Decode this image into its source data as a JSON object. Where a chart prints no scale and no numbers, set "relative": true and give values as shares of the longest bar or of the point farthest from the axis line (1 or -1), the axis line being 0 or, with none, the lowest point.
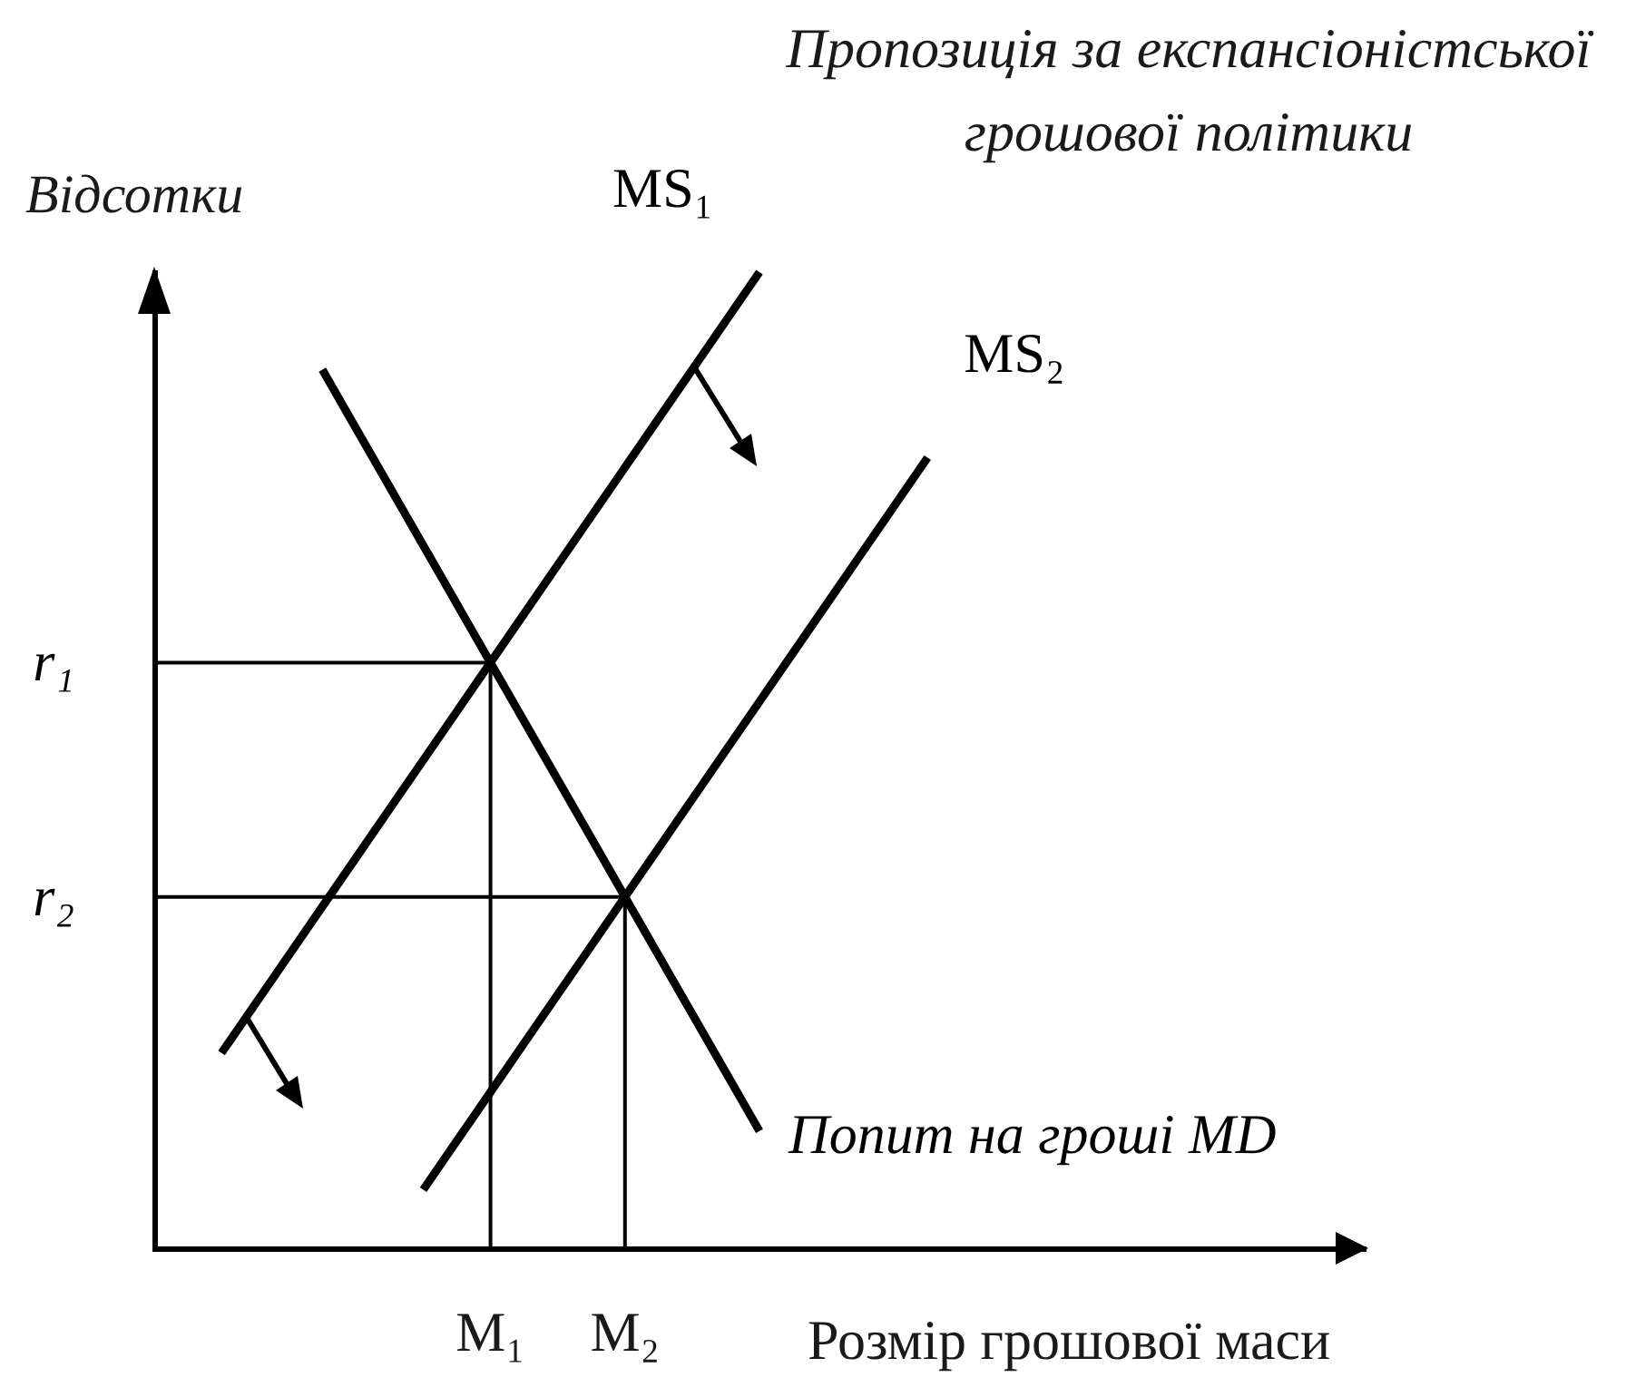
{
  "chart_data": {
    "type": "line",
    "title": "Пропозиція за експансіоністської грошової політики",
    "xlabel": "Розмір грошової маси",
    "ylabel": "Відсотки",
    "relative": true,
    "categories": [
      null,
      null,
      null,
      null,
      null,
      null,
      null,
      null,
      null,
      null,
      "M₁",
      null,
      null,
      null,
      "M₂",
      null,
      null,
      null,
      null,
      null,
      null,
      null,
      null,
      null,
      null,
      null,
      null,
      null,
      null,
      null,
      null,
      null,
      null,
      null,
      null,
      null,
      null
    ],
    "series": [
      {
        "name": "MS₁",
        "color": "#000000",
        "values": [
          null,
          null,
          0.2,
          0.25,
          0.3,
          0.35,
          0.4,
          0.45,
          0.5,
          0.55,
          0.6,
          0.65,
          0.7,
          0.75,
          0.8,
          0.85,
          0.9,
          0.95,
          1,
          null,
          null,
          null,
          null,
          null,
          null,
          null,
          null,
          null,
          null,
          null,
          null,
          null,
          null,
          null,
          null,
          null,
          null
        ]
      },
      {
        "name": "MS₂",
        "color": "#000000",
        "values": [
          null,
          null,
          null,
          null,
          null,
          null,
          null,
          null,
          0.06,
          0.11,
          0.16,
          0.21,
          0.26,
          0.31,
          0.36,
          0.41,
          0.46,
          0.51,
          0.56,
          0.61,
          0.66,
          0.71,
          0.76,
          0.81,
          null,
          null,
          null,
          null,
          null,
          null,
          null,
          null,
          null,
          null,
          null,
          null,
          null
        ]
      },
      {
        "name": "Попит на гроші MD",
        "color": "#000000",
        "values": [
          null,
          null,
          null,
          null,
          null,
          0.9,
          0.84,
          0.78,
          0.72,
          0.66,
          0.6,
          0.54,
          0.48,
          0.42,
          0.36,
          0.3,
          0.24,
          0.18,
          0.12,
          null,
          null,
          null,
          null,
          null,
          null,
          null,
          null,
          null,
          null,
          null,
          null,
          null,
          null,
          null,
          null,
          null,
          null
        ]
      },
      {
        "name": "r₁",
        "color": "#000000",
        "values": [
          0.6,
          0.6,
          0.6,
          0.6,
          0.6,
          0.6,
          0.6,
          0.6,
          0.6,
          0.6,
          0.6,
          null,
          null,
          null,
          null,
          null,
          null,
          null,
          null,
          null,
          null,
          null,
          null,
          null,
          null,
          null,
          null,
          null,
          null,
          null,
          null,
          null,
          null,
          null,
          null,
          null,
          null
        ]
      },
      {
        "name": "r₂",
        "color": "#000000",
        "values": [
          0.36,
          0.36,
          0.36,
          0.36,
          0.36,
          0.36,
          0.36,
          0.36,
          0.36,
          0.36,
          0.36,
          0.36,
          0.36,
          0.36,
          0.36,
          null,
          null,
          null,
          null,
          null,
          null,
          null,
          null,
          null,
          null,
          null,
          null,
          null,
          null,
          null,
          null,
          null,
          null,
          null,
          null,
          null,
          null
        ]
      },
      {
        "color": "#000000",
        "x": [
          "M₁",
          "M₁"
        ],
        "values": [
          0.6,
          0
        ]
      },
      {
        "color": "#000000",
        "x": [
          "M₂",
          "M₂"
        ],
        "values": [
          0.36,
          0
        ]
      }
    ]
  }
}
